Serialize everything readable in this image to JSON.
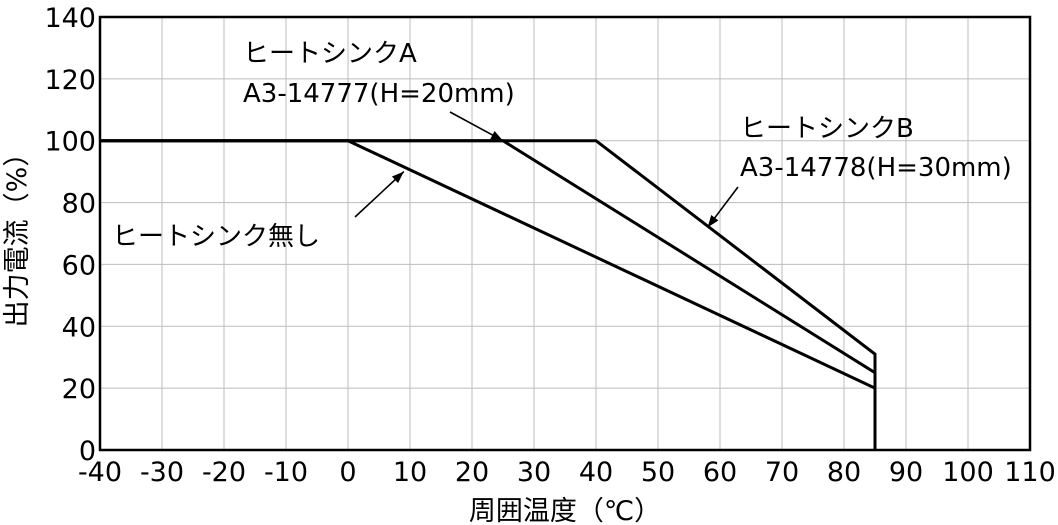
{
  "chart_data": {
    "type": "line",
    "xlabel": "周囲温度（℃）",
    "ylabel": "出力電流（%）",
    "xlim": [
      -40,
      110
    ],
    "ylim": [
      0,
      140
    ],
    "xticks": [
      -40,
      -30,
      -20,
      -10,
      0,
      10,
      20,
      30,
      40,
      50,
      60,
      70,
      80,
      90,
      100,
      110
    ],
    "yticks": [
      0,
      20,
      40,
      60,
      80,
      100,
      120,
      140
    ],
    "grid": true,
    "series": [
      {
        "name": "ヒートシンク無し",
        "x": [
          -40,
          0,
          85,
          85
        ],
        "y": [
          100,
          100,
          20,
          0
        ]
      },
      {
        "name": "ヒートシンクA",
        "x": [
          -40,
          25,
          85,
          85
        ],
        "y": [
          100,
          100,
          25,
          0
        ]
      },
      {
        "name": "ヒートシンクB",
        "x": [
          -40,
          40,
          85,
          85
        ],
        "y": [
          100,
          100,
          31,
          0
        ]
      }
    ],
    "annotations": [
      {
        "lines": [
          "ヒートシンクA",
          "A3-14777(H=20mm)"
        ],
        "target": [
          25,
          100
        ]
      },
      {
        "lines": [
          "ヒートシンクB",
          "A3-14778(H=30mm)"
        ],
        "target": [
          58,
          72
        ]
      },
      {
        "lines": [
          "ヒートシンク無し"
        ],
        "target": [
          9,
          90
        ]
      }
    ]
  }
}
